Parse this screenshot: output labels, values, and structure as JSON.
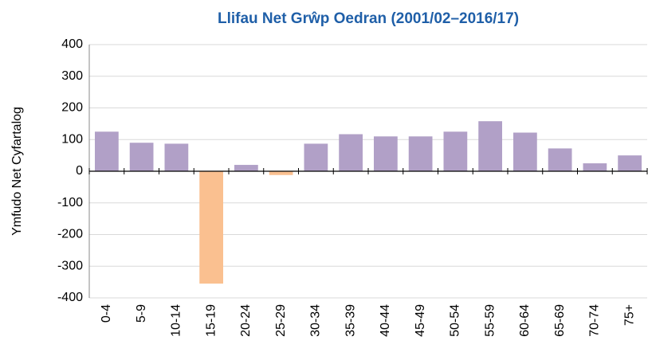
{
  "chart_data": {
    "type": "bar",
    "title": "Llifau Net Grŵp Oedran (2001/02–2016/17)",
    "y_label": "Ymfudo Net Cyfartalog",
    "categories": [
      "0-4",
      "5-9",
      "10-14",
      "15-19",
      "20-24",
      "25-29",
      "30-34",
      "35-39",
      "40-44",
      "45-49",
      "50-54",
      "55-59",
      "60-64",
      "65-69",
      "70-74",
      "75+"
    ],
    "values": [
      125,
      90,
      87,
      -355,
      20,
      -12,
      87,
      117,
      110,
      110,
      125,
      158,
      122,
      72,
      25,
      50
    ],
    "colors": [
      "#b1a0c7",
      "#b1a0c7",
      "#b1a0c7",
      "#fac090",
      "#b1a0c7",
      "#fac090",
      "#b1a0c7",
      "#b1a0c7",
      "#b1a0c7",
      "#b1a0c7",
      "#b1a0c7",
      "#b1a0c7",
      "#b1a0c7",
      "#b1a0c7",
      "#b1a0c7",
      "#b1a0c7"
    ],
    "ylim": [
      -400,
      400
    ],
    "yticks": [
      -400,
      -300,
      -200,
      -100,
      0,
      100,
      200,
      300,
      400
    ],
    "grid": true
  }
}
